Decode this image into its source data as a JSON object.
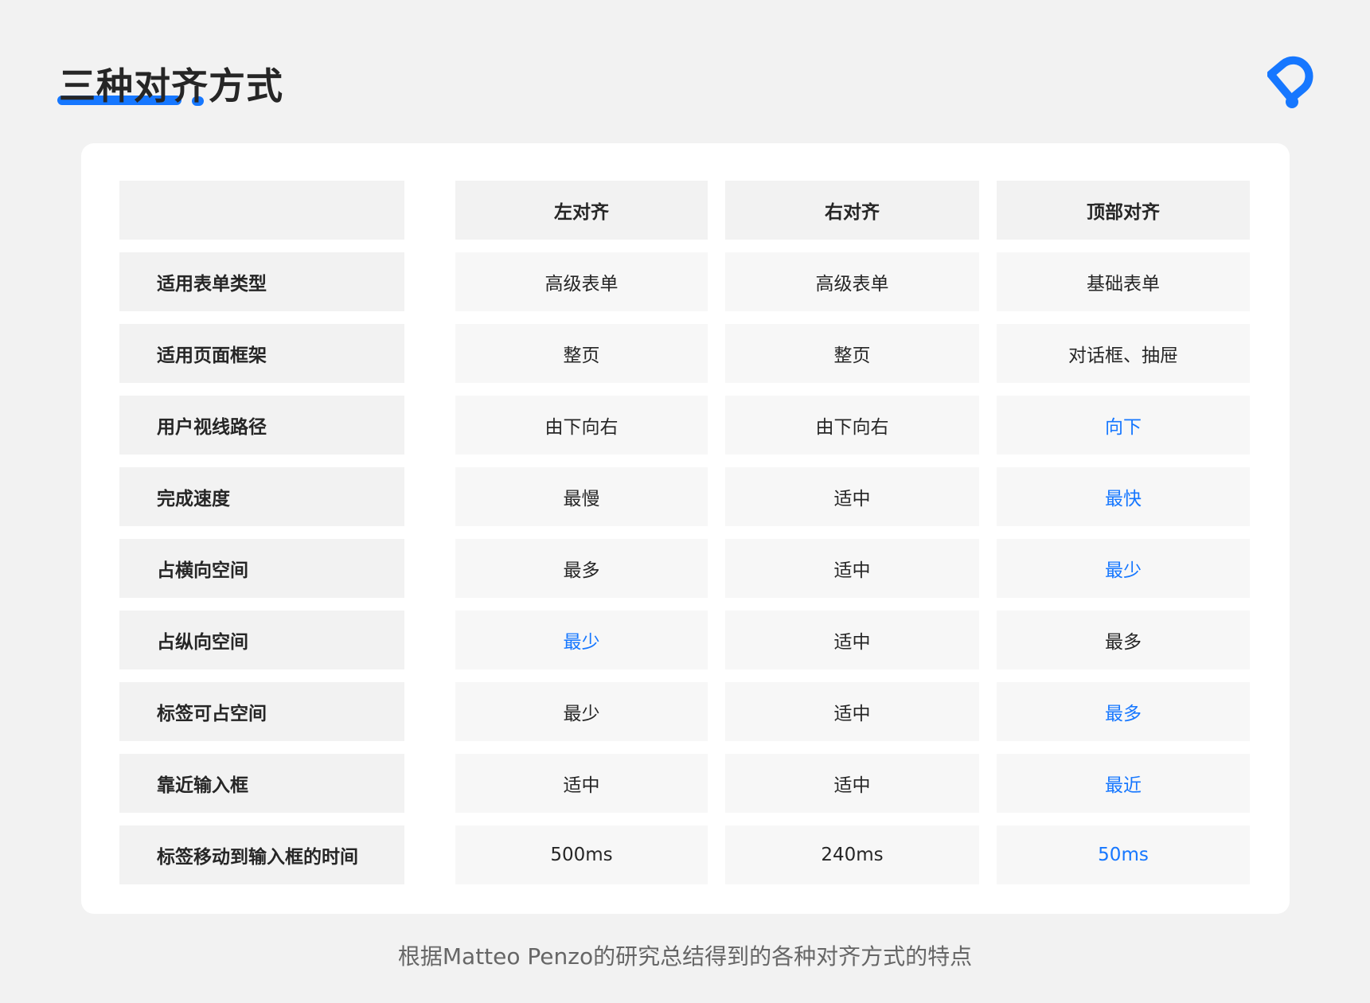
{
  "title": "三种对齐方式",
  "accent_color": "#1677ff",
  "logo": {
    "icon": "brand-logo-icon"
  },
  "table": {
    "headers": [
      "",
      "左对齐",
      "右对齐",
      "顶部对齐"
    ],
    "rows": [
      {
        "label": "适用表单类型",
        "values": [
          "高级表单",
          "高级表单",
          "基础表单"
        ],
        "highlight": [
          false,
          false,
          false
        ]
      },
      {
        "label": "适用页面框架",
        "values": [
          "整页",
          "整页",
          "对话框、抽屉"
        ],
        "highlight": [
          false,
          false,
          false
        ]
      },
      {
        "label": "用户视线路径",
        "values": [
          "由下向右",
          "由下向右",
          "向下"
        ],
        "highlight": [
          false,
          false,
          true
        ]
      },
      {
        "label": "完成速度",
        "values": [
          "最慢",
          "适中",
          "最快"
        ],
        "highlight": [
          false,
          false,
          true
        ]
      },
      {
        "label": "占横向空间",
        "values": [
          "最多",
          "适中",
          "最少"
        ],
        "highlight": [
          false,
          false,
          true
        ]
      },
      {
        "label": "占纵向空间",
        "values": [
          "最少",
          "适中",
          "最多"
        ],
        "highlight": [
          true,
          false,
          false
        ]
      },
      {
        "label": "标签可占空间",
        "values": [
          "最少",
          "适中",
          "最多"
        ],
        "highlight": [
          false,
          false,
          true
        ]
      },
      {
        "label": "靠近输入框",
        "values": [
          "适中",
          "适中",
          "最近"
        ],
        "highlight": [
          false,
          false,
          true
        ]
      },
      {
        "label": "标签移动到输入框的时间",
        "values": [
          "500ms",
          "240ms",
          "50ms"
        ],
        "highlight": [
          false,
          false,
          true
        ]
      }
    ]
  },
  "caption": "根据Matteo Penzo的研究总结得到的各种对齐方式的特点"
}
